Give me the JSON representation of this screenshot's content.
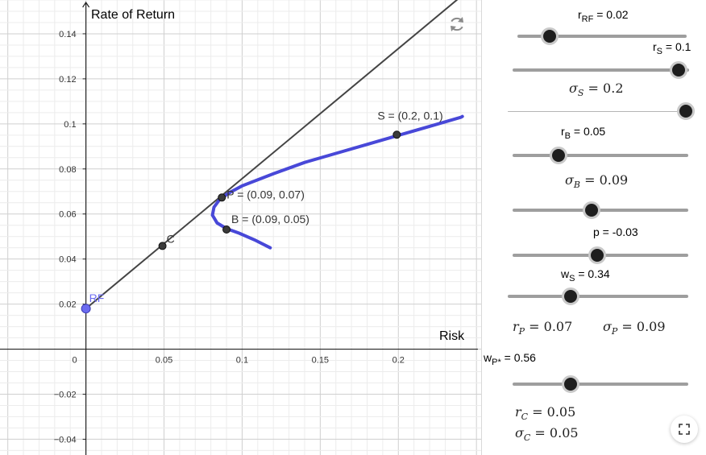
{
  "graph": {
    "y_axis_label": "Rate of Return",
    "x_axis_label": "Risk",
    "x_ticks": [
      {
        "value": 0,
        "label": "0"
      },
      {
        "value": 0.05,
        "label": "0.05"
      },
      {
        "value": 0.1,
        "label": "0.1"
      },
      {
        "value": 0.15,
        "label": "0.15"
      },
      {
        "value": 0.2,
        "label": "0.2"
      }
    ],
    "y_ticks": [
      {
        "value": 0.14,
        "label": "0.14"
      },
      {
        "value": 0.12,
        "label": "0.12"
      },
      {
        "value": 0.1,
        "label": "0.1"
      },
      {
        "value": 0.08,
        "label": "0.08"
      },
      {
        "value": 0.06,
        "label": "0.06"
      },
      {
        "value": 0.04,
        "label": "0.04"
      },
      {
        "value": 0.02,
        "label": "0.02"
      },
      {
        "value": -0.02,
        "label": "−0.02"
      },
      {
        "value": -0.04,
        "label": "−0.04"
      }
    ],
    "xlim": [
      -0.055,
      0.253
    ],
    "ylim": [
      -0.047,
      0.155
    ],
    "cal_line": {
      "from": [
        0,
        0.018
      ],
      "to": [
        0.253,
        0.164
      ],
      "color": "#444444"
    },
    "frontier_points": [
      [
        0.118,
        0.045
      ],
      [
        0.108,
        0.0485
      ],
      [
        0.098,
        0.0515
      ],
      [
        0.09,
        0.0535
      ],
      [
        0.084,
        0.056
      ],
      [
        0.081,
        0.0595
      ],
      [
        0.082,
        0.063
      ],
      [
        0.0857,
        0.0665
      ],
      [
        0.092,
        0.0695
      ],
      [
        0.1,
        0.0725
      ],
      [
        0.12,
        0.0779
      ],
      [
        0.14,
        0.0829
      ],
      [
        0.16,
        0.0869
      ],
      [
        0.18,
        0.0909
      ],
      [
        0.2,
        0.0949
      ],
      [
        0.22,
        0.0989
      ],
      [
        0.24,
        0.1029
      ],
      [
        0.241,
        0.1033
      ]
    ],
    "frontier_color": "#4848d8",
    "points": [
      {
        "id": "RF",
        "label": "RF",
        "x": 0,
        "y": 0.018,
        "color": "#6b6bf0"
      },
      {
        "id": "C",
        "label": "C",
        "x": 0.049,
        "y": 0.0458,
        "color": "#444444"
      },
      {
        "id": "P",
        "label": "P = (0.09, 0.07)",
        "x": 0.087,
        "y": 0.0673,
        "color": "#444444"
      },
      {
        "id": "B",
        "label": "B = (0.09, 0.05)",
        "x": 0.09,
        "y": 0.0531,
        "color": "#444444"
      },
      {
        "id": "S",
        "label": "S = (0.2, 0.1)",
        "x": 0.199,
        "y": 0.0952,
        "color": "#444444"
      }
    ],
    "reset_icon": "reset-icon"
  },
  "panel": {
    "sliders": [
      {
        "id": "rRF",
        "label": "r",
        "sub": "RF",
        "value_text": " = 0.02",
        "fraction": 0.19,
        "style": "bold"
      },
      {
        "id": "rS",
        "label": "r",
        "sub": "S",
        "value_text": " = 0.1",
        "fraction": 0.94,
        "style": "bold"
      },
      {
        "id": "sigmaS",
        "label": "σ",
        "sub": "S",
        "value_text": " = 0.2",
        "fraction": 0.96,
        "style": "thin"
      },
      {
        "id": "rB",
        "label": "r",
        "sub": "B",
        "value_text": " = 0.05",
        "fraction": 0.26,
        "style": "bold"
      },
      {
        "id": "sigmaB",
        "label": "σ",
        "sub": "B",
        "value_text": " = 0.09",
        "fraction": 0.45,
        "style": "bold"
      },
      {
        "id": "p",
        "label": "p",
        "sub": "",
        "value_text": " = -0.03",
        "fraction": 0.48,
        "style": "bold"
      },
      {
        "id": "wS",
        "label": "w",
        "sub": "S",
        "value_text": " = 0.34",
        "fraction": 0.35,
        "style": "bold"
      },
      {
        "id": "wP",
        "label": "w",
        "sub": "P*",
        "value_text": " = 0.56",
        "fraction": 0.33,
        "style": "bold"
      }
    ],
    "results": {
      "rP": {
        "sym": "r",
        "sub": "P",
        "text": " = 0.07"
      },
      "sigmaP": {
        "sym": "σ",
        "sub": "P",
        "text": " = 0.09"
      },
      "rC": {
        "sym": "r",
        "sub": "C",
        "text": " = 0.05"
      },
      "sigmaC": {
        "sym": "σ",
        "sub": "C",
        "text": " = 0.05"
      }
    },
    "fullscreen_icon": "fullscreen-icon"
  }
}
